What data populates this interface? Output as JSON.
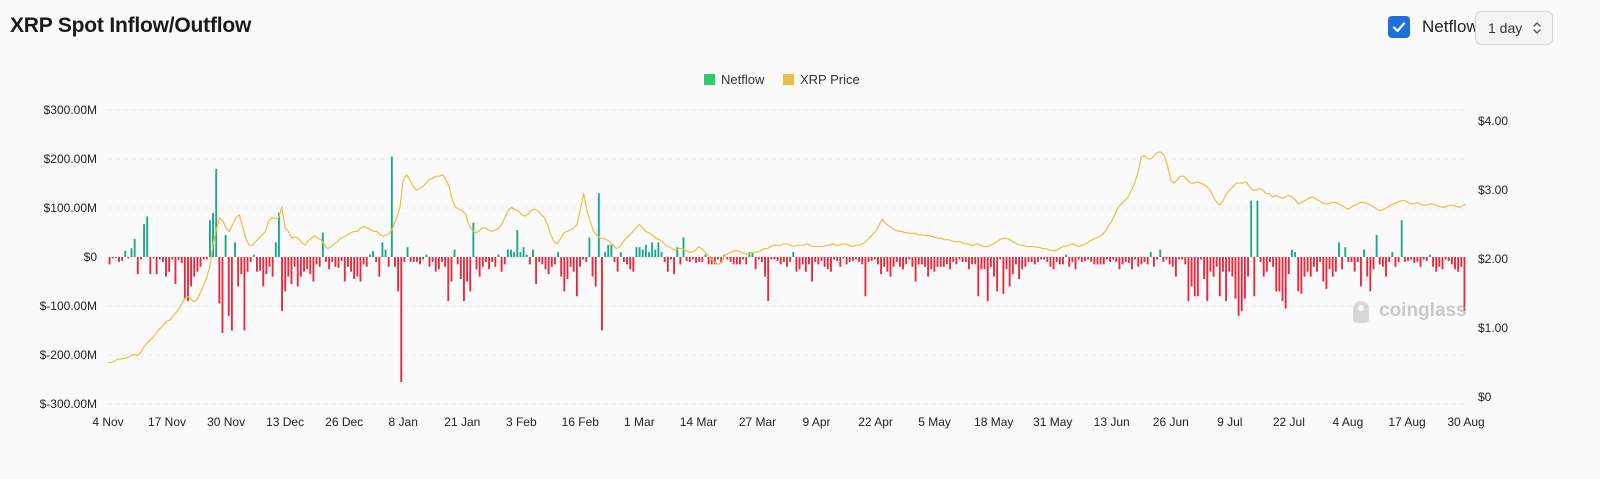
{
  "header": {
    "title": "XRP Spot Inflow/Outflow",
    "netflow_toggle_label": "Netflow",
    "netflow_checked": true,
    "interval_value": "1 day"
  },
  "colors": {
    "inflow": "#1aa88a",
    "outflow": "#e8293f",
    "price": "#e9bf45",
    "checkbox": "#1e6fd9",
    "legend_netflow": "#2ecc71"
  },
  "watermark": "coinglass",
  "chart_data": {
    "type": "bar+line",
    "legend": [
      "Netflow",
      "XRP Price"
    ],
    "legend_placement": "top-center",
    "left_axis": {
      "ticks": [
        "$300.00M",
        "$200.00M",
        "$100.00M",
        "$0",
        "$-100.00M",
        "$-200.00M",
        "$-300.00M"
      ],
      "range_millions": [
        -300,
        300
      ]
    },
    "right_axis": {
      "ticks": [
        "$4.00",
        "$3.00",
        "$2.00",
        "$1.00",
        "$0"
      ],
      "range": [
        0,
        4
      ]
    },
    "x_labels": [
      "4 Nov",
      "17 Nov",
      "30 Nov",
      "13 Dec",
      "26 Dec",
      "8 Jan",
      "21 Jan",
      "3 Feb",
      "16 Feb",
      "1 Mar",
      "14 Mar",
      "27 Mar",
      "9 Apr",
      "22 Apr",
      "5 May",
      "18 May",
      "31 May",
      "13 Jun",
      "26 Jun",
      "9 Jul",
      "22 Jul",
      "4 Aug",
      "17 Aug",
      "30 Aug"
    ],
    "start_date": "2024-11-04",
    "netflow_millions": [
      -15,
      -3,
      -2,
      -10,
      -8,
      13,
      -3,
      18,
      37,
      -35,
      -5,
      67,
      83,
      -35,
      -3,
      -35,
      -5,
      -10,
      -40,
      -30,
      -5,
      -55,
      -6,
      -12,
      -85,
      -90,
      -60,
      -40,
      -30,
      -20,
      -5,
      -5,
      75,
      90,
      180,
      -95,
      -155,
      45,
      -120,
      -150,
      30,
      -60,
      -35,
      -150,
      -30,
      -10,
      5,
      -30,
      -28,
      -60,
      -35,
      -20,
      -40,
      30,
      90,
      -110,
      -70,
      -40,
      -55,
      -20,
      -60,
      -40,
      -30,
      -25,
      -35,
      -50,
      -15,
      -20,
      50,
      -10,
      -25,
      -10,
      -20,
      -22,
      -8,
      -50,
      -20,
      -30,
      -45,
      -40,
      -50,
      -15,
      -20,
      5,
      12,
      -10,
      -40,
      30,
      15,
      -20,
      205,
      -20,
      -70,
      -255,
      -10,
      20,
      -10,
      -10,
      -10,
      -15,
      -5,
      5,
      -20,
      -10,
      -30,
      -25,
      -10,
      -20,
      -90,
      -50,
      15,
      -15,
      -45,
      -90,
      -50,
      -70,
      70,
      -25,
      -40,
      -20,
      -10,
      -25,
      -10,
      -20,
      5,
      -30,
      -15,
      15,
      15,
      10,
      55,
      10,
      20,
      5,
      -15,
      15,
      -55,
      -10,
      -15,
      -25,
      -35,
      -20,
      -15,
      10,
      -40,
      -70,
      -45,
      -20,
      -30,
      -80,
      -20,
      -5,
      -10,
      40,
      -40,
      -60,
      130,
      -150,
      10,
      25,
      25,
      -10,
      -30,
      10,
      -10,
      -15,
      -25,
      -30,
      20,
      20,
      15,
      25,
      10,
      30,
      15,
      30,
      10,
      -10,
      -30,
      -5,
      -35,
      20,
      -15,
      40,
      -8,
      -10,
      -5,
      -12,
      -10,
      -10,
      5,
      -15,
      -15,
      -15,
      -5,
      -12,
      5,
      -5,
      -10,
      -15,
      -15,
      -15,
      -5,
      -15,
      10,
      10,
      -25,
      -5,
      -10,
      -40,
      -90,
      -5,
      -5,
      -8,
      -15,
      -10,
      -20,
      -10,
      10,
      -30,
      -25,
      -15,
      -30,
      -15,
      -50,
      -10,
      -15,
      -8,
      -20,
      -25,
      -30,
      -5,
      -8,
      -20,
      -3,
      -15,
      -10,
      -8,
      -5,
      -10,
      -15,
      -80,
      -10,
      -8,
      -5,
      -15,
      -35,
      -20,
      -30,
      -40,
      -20,
      -10,
      -20,
      -25,
      -15,
      -5,
      -20,
      -50,
      -15,
      -15,
      -20,
      -40,
      -25,
      -30,
      -20,
      -20,
      -20,
      -15,
      -25,
      -10,
      -15,
      -5,
      -10,
      -10,
      -25,
      -15,
      -15,
      -80,
      -25,
      -25,
      -90,
      -20,
      -40,
      -70,
      -5,
      -75,
      -25,
      -60,
      -35,
      -15,
      -45,
      -25,
      -20,
      -10,
      -10,
      -15,
      -10,
      -5,
      -5,
      -10,
      -20,
      -25,
      -10,
      -15,
      -15,
      5,
      -20,
      -10,
      -25,
      -5,
      -10,
      -8,
      -5,
      -10,
      -15,
      -15,
      -15,
      -15,
      -5,
      -10,
      -5,
      -10,
      -25,
      -15,
      -10,
      -12,
      -25,
      -5,
      -20,
      -15,
      -10,
      -15,
      10,
      -20,
      -5,
      15,
      -10,
      -5,
      -15,
      -20,
      -40,
      -5,
      -5,
      -15,
      -90,
      -60,
      -80,
      -80,
      -5,
      -45,
      -90,
      -30,
      -40,
      -20,
      -80,
      -30,
      -90,
      -30,
      -40,
      -85,
      -120,
      -110,
      -85,
      -40,
      115,
      -80,
      115,
      -10,
      -40,
      -30,
      -10,
      -20,
      -70,
      -70,
      -90,
      -105,
      -35,
      15,
      10,
      -70,
      -75,
      -40,
      -30,
      -40,
      -20,
      -30,
      -10,
      -50,
      -65,
      -25,
      -40,
      -30,
      30,
      -25,
      20,
      -10,
      -10,
      -30,
      -10,
      -60,
      15,
      -40,
      -70,
      -25,
      45,
      -15,
      -20,
      -40,
      -10,
      10,
      -20,
      -10,
      75,
      -10,
      -8,
      -5,
      -12,
      -10,
      -20,
      -5,
      -8,
      5,
      -20,
      -30,
      -20,
      -25,
      -5,
      -8,
      -15,
      -25,
      -30,
      -20,
      -110
    ],
    "xrp_price": [
      0.5,
      0.5,
      0.52,
      0.55,
      0.55,
      0.56,
      0.57,
      0.6,
      0.62,
      0.6,
      0.65,
      0.73,
      0.78,
      0.83,
      0.88,
      0.95,
      1.0,
      1.05,
      1.1,
      1.12,
      1.18,
      1.24,
      1.3,
      1.4,
      1.46,
      1.44,
      1.38,
      1.4,
      1.5,
      1.6,
      1.72,
      1.88,
      2.2,
      2.42,
      2.6,
      2.55,
      2.45,
      2.4,
      2.5,
      2.6,
      2.64,
      2.48,
      2.3,
      2.2,
      2.2,
      2.25,
      2.3,
      2.35,
      2.4,
      2.55,
      2.6,
      2.58,
      2.6,
      2.75,
      2.45,
      2.4,
      2.3,
      2.32,
      2.3,
      2.24,
      2.2,
      2.26,
      2.3,
      2.34,
      2.3,
      2.28,
      2.2,
      2.15,
      2.18,
      2.22,
      2.25,
      2.3,
      2.32,
      2.35,
      2.38,
      2.4,
      2.4,
      2.45,
      2.47,
      2.45,
      2.43,
      2.4,
      2.4,
      2.35,
      2.33,
      2.35,
      2.38,
      2.47,
      2.6,
      2.75,
      3.15,
      3.22,
      3.15,
      3.05,
      3.0,
      3.02,
      3.05,
      3.1,
      3.15,
      3.17,
      3.2,
      3.2,
      3.22,
      3.15,
      3.05,
      2.85,
      2.75,
      2.72,
      2.7,
      2.65,
      2.5,
      2.42,
      2.38,
      2.4,
      2.45,
      2.45,
      2.42,
      2.4,
      2.42,
      2.44,
      2.5,
      2.6,
      2.7,
      2.75,
      2.72,
      2.7,
      2.65,
      2.62,
      2.65,
      2.7,
      2.72,
      2.7,
      2.65,
      2.6,
      2.5,
      2.35,
      2.25,
      2.22,
      2.3,
      2.38,
      2.4,
      2.42,
      2.45,
      2.5,
      2.72,
      2.95,
      2.7,
      2.55,
      2.4,
      2.35,
      2.3,
      2.3,
      2.28,
      2.25,
      2.2,
      2.15,
      2.18,
      2.25,
      2.3,
      2.35,
      2.4,
      2.45,
      2.5,
      2.45,
      2.4,
      2.38,
      2.35,
      2.3,
      2.28,
      2.25,
      2.2,
      2.18,
      2.15,
      2.13,
      2.15,
      2.15,
      2.13,
      2.1,
      2.1,
      2.12,
      2.18,
      2.15,
      2.1,
      2.05,
      2.0,
      1.95,
      1.92,
      1.95,
      2.05,
      2.08,
      2.1,
      2.12,
      2.12,
      2.1,
      2.08,
      2.07,
      2.08,
      2.1,
      2.1,
      2.12,
      2.15,
      2.15,
      2.18,
      2.2,
      2.2,
      2.2,
      2.22,
      2.22,
      2.2,
      2.18,
      2.2,
      2.2,
      2.2,
      2.22,
      2.2,
      2.18,
      2.18,
      2.18,
      2.18,
      2.2,
      2.2,
      2.22,
      2.2,
      2.2,
      2.22,
      2.22,
      2.2,
      2.18,
      2.2,
      2.2,
      2.22,
      2.25,
      2.3,
      2.35,
      2.4,
      2.48,
      2.58,
      2.52,
      2.48,
      2.45,
      2.42,
      2.4,
      2.4,
      2.38,
      2.38,
      2.37,
      2.37,
      2.35,
      2.35,
      2.34,
      2.34,
      2.33,
      2.32,
      2.3,
      2.3,
      2.28,
      2.28,
      2.27,
      2.25,
      2.25,
      2.25,
      2.22,
      2.22,
      2.2,
      2.2,
      2.22,
      2.2,
      2.18,
      2.18,
      2.2,
      2.22,
      2.25,
      2.28,
      2.3,
      2.3,
      2.28,
      2.25,
      2.22,
      2.2,
      2.2,
      2.18,
      2.18,
      2.18,
      2.17,
      2.17,
      2.15,
      2.15,
      2.13,
      2.12,
      2.12,
      2.15,
      2.18,
      2.18,
      2.2,
      2.22,
      2.2,
      2.18,
      2.2,
      2.22,
      2.25,
      2.28,
      2.3,
      2.32,
      2.35,
      2.4,
      2.48,
      2.55,
      2.65,
      2.75,
      2.8,
      2.85,
      2.9,
      3.0,
      3.1,
      3.25,
      3.48,
      3.5,
      3.45,
      3.45,
      3.5,
      3.55,
      3.55,
      3.5,
      3.35,
      3.15,
      3.1,
      3.15,
      3.2,
      3.2,
      3.15,
      3.1,
      3.1,
      3.12,
      3.1,
      3.08,
      3.05,
      3.0,
      2.9,
      2.82,
      2.78,
      2.85,
      2.95,
      3.0,
      3.05,
      3.1,
      3.1,
      3.1,
      3.12,
      3.05,
      3.0,
      3.0,
      3.02,
      3.0,
      2.95,
      2.95,
      2.9,
      2.92,
      2.9,
      2.88,
      2.9,
      2.92,
      2.9,
      2.85,
      2.8,
      2.82,
      2.85,
      2.88,
      2.9,
      2.88,
      2.85,
      2.82,
      2.8,
      2.8,
      2.82,
      2.82,
      2.8,
      2.78,
      2.75,
      2.72,
      2.75,
      2.78,
      2.8,
      2.82,
      2.82,
      2.8,
      2.78,
      2.75,
      2.72,
      2.7,
      2.72,
      2.75,
      2.78,
      2.8,
      2.82,
      2.84,
      2.85,
      2.83,
      2.8,
      2.8,
      2.82,
      2.8,
      2.78,
      2.78,
      2.8,
      2.8,
      2.78,
      2.76,
      2.75,
      2.76,
      2.78,
      2.78,
      2.76,
      2.75,
      2.77,
      2.8
    ]
  }
}
